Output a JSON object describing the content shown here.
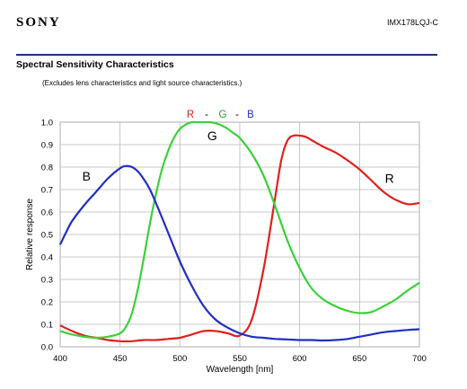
{
  "header": {
    "brand": "SONY",
    "model": "IMX178LQJ-C"
  },
  "section": {
    "title": "Spectral Sensitivity Characteristics",
    "note": "(Excludes lens characteristics and light source characteristics.)"
  },
  "legend": {
    "r": "R",
    "dash1": "-",
    "g": "G",
    "dash2": "-",
    "b": "B"
  },
  "colors": {
    "r": "#e02020",
    "g": "#3ad13a",
    "b": "#1f2fbf",
    "header_rule": "#1f2d87"
  },
  "chart_data": {
    "type": "line",
    "xlabel": "Wavelength [nm]",
    "ylabel": "Relative response",
    "xlim": [
      400,
      700
    ],
    "ylim": [
      0,
      1.0
    ],
    "xticks": [
      400,
      450,
      500,
      550,
      600,
      650,
      700
    ],
    "yticks": [
      0.0,
      0.1,
      0.2,
      0.3,
      0.4,
      0.5,
      0.6,
      0.7,
      0.8,
      0.9,
      1.0
    ],
    "grid": true,
    "legend_position": "top-center",
    "series": [
      {
        "name": "R",
        "label": "R",
        "label_at": [
          675,
          0.73
        ],
        "color": "#e02020",
        "x": [
          400,
          410,
          420,
          430,
          440,
          450,
          460,
          470,
          480,
          490,
          500,
          510,
          520,
          530,
          540,
          550,
          560,
          570,
          580,
          585,
          590,
          595,
          600,
          605,
          610,
          620,
          630,
          640,
          650,
          660,
          670,
          680,
          690,
          700
        ],
        "y": [
          0.095,
          0.07,
          0.05,
          0.04,
          0.03,
          0.025,
          0.025,
          0.03,
          0.03,
          0.035,
          0.04,
          0.055,
          0.07,
          0.07,
          0.06,
          0.05,
          0.12,
          0.35,
          0.68,
          0.84,
          0.92,
          0.94,
          0.94,
          0.935,
          0.92,
          0.89,
          0.865,
          0.83,
          0.79,
          0.74,
          0.69,
          0.655,
          0.635,
          0.64
        ]
      },
      {
        "name": "G",
        "label": "G",
        "label_at": [
          527,
          0.92
        ],
        "color": "#3ad13a",
        "x": [
          400,
          410,
          420,
          430,
          440,
          450,
          455,
          460,
          465,
          470,
          475,
          480,
          485,
          490,
          495,
          500,
          505,
          510,
          515,
          520,
          525,
          530,
          535,
          540,
          545,
          550,
          560,
          570,
          580,
          590,
          600,
          610,
          620,
          630,
          640,
          650,
          660,
          670,
          680,
          690,
          700
        ],
        "y": [
          0.07,
          0.055,
          0.045,
          0.04,
          0.045,
          0.06,
          0.09,
          0.15,
          0.26,
          0.4,
          0.55,
          0.68,
          0.79,
          0.87,
          0.93,
          0.97,
          0.99,
          1.0,
          1.0,
          1.0,
          1.0,
          0.995,
          0.985,
          0.97,
          0.95,
          0.93,
          0.86,
          0.76,
          0.62,
          0.47,
          0.35,
          0.26,
          0.21,
          0.18,
          0.16,
          0.15,
          0.155,
          0.18,
          0.21,
          0.25,
          0.285
        ]
      },
      {
        "name": "B",
        "label": "B",
        "label_at": [
          422,
          0.74
        ],
        "color": "#1f2fbf",
        "x": [
          400,
          405,
          410,
          420,
          430,
          440,
          450,
          455,
          460,
          465,
          470,
          475,
          480,
          490,
          500,
          510,
          520,
          530,
          540,
          550,
          560,
          570,
          580,
          590,
          600,
          610,
          620,
          630,
          640,
          650,
          660,
          670,
          680,
          690,
          700
        ],
        "y": [
          0.455,
          0.51,
          0.56,
          0.63,
          0.69,
          0.75,
          0.795,
          0.805,
          0.8,
          0.78,
          0.745,
          0.7,
          0.64,
          0.51,
          0.38,
          0.27,
          0.18,
          0.12,
          0.085,
          0.06,
          0.045,
          0.04,
          0.035,
          0.033,
          0.03,
          0.03,
          0.028,
          0.03,
          0.035,
          0.045,
          0.055,
          0.065,
          0.07,
          0.075,
          0.078
        ]
      }
    ]
  }
}
